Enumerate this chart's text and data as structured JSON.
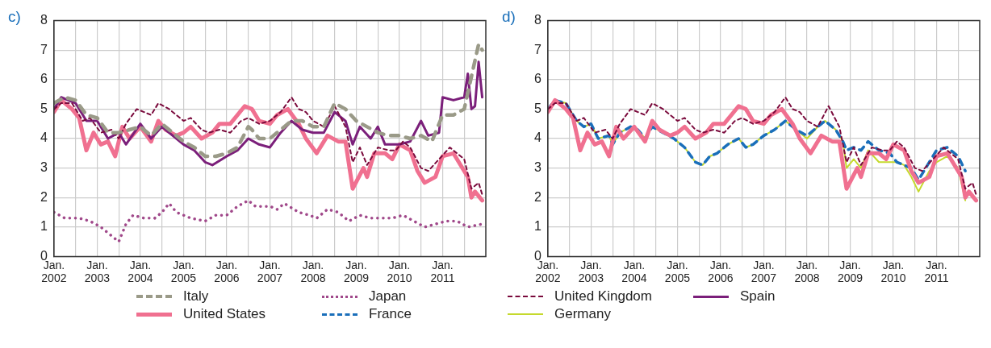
{
  "chart_data": [
    {
      "type": "line",
      "title": "c)",
      "legend": "bottom",
      "grid": true,
      "xlim": [
        "2002-01",
        "2012-01"
      ],
      "ylim": [
        0,
        8
      ],
      "yticks": [
        0,
        1,
        2,
        3,
        4,
        5,
        6,
        7,
        8
      ],
      "xticks": [
        {
          "value": "2002-01",
          "label": "Jan. 2002"
        },
        {
          "value": "2002-07",
          "label": null
        },
        {
          "value": "2003-01",
          "label": "Jan. 2003"
        },
        {
          "value": "2003-07",
          "label": null
        },
        {
          "value": "2004-01",
          "label": "Jan. 2004"
        },
        {
          "value": "2004-07",
          "label": null
        },
        {
          "value": "2005-01",
          "label": "Jan. 2005"
        },
        {
          "value": "2005-07",
          "label": null
        },
        {
          "value": "2006-01",
          "label": "Jan. 2006"
        },
        {
          "value": "2006-07",
          "label": null
        },
        {
          "value": "2007-01",
          "label": "Jan. 2007"
        },
        {
          "value": "2007-07",
          "label": null
        },
        {
          "value": "2008-01",
          "label": "Jan. 2008"
        },
        {
          "value": "2008-07",
          "label": null
        },
        {
          "value": "2009-01",
          "label": "Jan. 2009"
        },
        {
          "value": "2009-07",
          "label": null
        },
        {
          "value": "2010-01",
          "label": "Jan. 2010"
        },
        {
          "value": "2010-07",
          "label": null
        },
        {
          "value": "2011-01",
          "label": "Jan. 2011"
        },
        {
          "value": "2011-07",
          "label": null
        }
      ],
      "series": [
        {
          "name": "Italy",
          "color": "#9a9a88",
          "line_style": "dashed",
          "x": [
            "2002-01",
            "2002-04",
            "2002-07",
            "2002-10",
            "2003-01",
            "2003-04",
            "2003-07",
            "2003-10",
            "2004-01",
            "2004-04",
            "2004-07",
            "2004-10",
            "2005-01",
            "2005-04",
            "2005-07",
            "2005-10",
            "2006-01",
            "2006-04",
            "2006-07",
            "2006-08",
            "2006-10",
            "2007-01",
            "2007-04",
            "2007-07",
            "2007-10",
            "2008-01",
            "2008-04",
            "2008-07",
            "2008-10",
            "2009-01",
            "2009-04",
            "2009-07",
            "2009-10",
            "2010-01",
            "2010-04",
            "2010-07",
            "2010-10",
            "2011-01",
            "2011-04",
            "2011-07",
            "2011-09",
            "2011-11",
            "2011-12"
          ],
          "values": [
            5.2,
            5.4,
            5.3,
            4.8,
            4.7,
            4.2,
            4.2,
            4.3,
            4.4,
            4.1,
            4.5,
            4.2,
            3.9,
            3.7,
            3.4,
            3.4,
            3.5,
            3.7,
            4.4,
            4.3,
            4.0,
            4.0,
            4.3,
            4.6,
            4.6,
            4.4,
            4.4,
            5.2,
            5.0,
            4.6,
            4.4,
            4.2,
            4.1,
            4.1,
            4.0,
            4.1,
            3.9,
            4.8,
            4.8,
            5.0,
            6.1,
            7.2,
            7.0
          ]
        },
        {
          "name": "Japan",
          "color": "#a0488a",
          "line_style": "dotted",
          "x": [
            "2002-01",
            "2002-04",
            "2002-08",
            "2002-11",
            "2003-02",
            "2003-05",
            "2003-07",
            "2003-09",
            "2003-11",
            "2004-02",
            "2004-05",
            "2004-07",
            "2004-09",
            "2004-11",
            "2005-03",
            "2005-07",
            "2005-10",
            "2006-01",
            "2006-04",
            "2006-07",
            "2006-09",
            "2007-01",
            "2007-03",
            "2007-05",
            "2007-09",
            "2007-12",
            "2008-02",
            "2008-05",
            "2008-08",
            "2008-11",
            "2009-02",
            "2009-05",
            "2009-08",
            "2009-11",
            "2010-02",
            "2010-05",
            "2010-08",
            "2010-11",
            "2011-02",
            "2011-05",
            "2011-08",
            "2011-12"
          ],
          "values": [
            1.5,
            1.3,
            1.3,
            1.2,
            1.0,
            0.7,
            0.5,
            1.1,
            1.4,
            1.3,
            1.3,
            1.5,
            1.8,
            1.5,
            1.3,
            1.2,
            1.4,
            1.4,
            1.7,
            1.9,
            1.7,
            1.7,
            1.6,
            1.8,
            1.5,
            1.4,
            1.3,
            1.6,
            1.5,
            1.2,
            1.4,
            1.3,
            1.3,
            1.3,
            1.4,
            1.2,
            1.0,
            1.1,
            1.2,
            1.2,
            1.0,
            1.1
          ]
        },
        {
          "name": "United Kingdom",
          "color": "#7a0a3c",
          "line_style": "dashed",
          "x": [
            "2002-01",
            "2002-03",
            "2002-06",
            "2002-09",
            "2002-11",
            "2003-02",
            "2003-05",
            "2003-07",
            "2003-09",
            "2003-12",
            "2004-02",
            "2004-04",
            "2004-06",
            "2004-09",
            "2005-01",
            "2005-03",
            "2005-06",
            "2005-08",
            "2005-11",
            "2006-02",
            "2006-05",
            "2006-07",
            "2006-10",
            "2007-01",
            "2007-04",
            "2007-07",
            "2007-09",
            "2007-11",
            "2008-01",
            "2008-04",
            "2008-07",
            "2008-10",
            "2008-12",
            "2009-02",
            "2009-04",
            "2009-07",
            "2009-10",
            "2009-12",
            "2010-02",
            "2010-04",
            "2010-07",
            "2010-09",
            "2010-12",
            "2011-03",
            "2011-05",
            "2011-07",
            "2011-09",
            "2011-11",
            "2011-12"
          ],
          "values": [
            5.0,
            5.2,
            5.2,
            4.6,
            4.7,
            4.2,
            4.3,
            4.0,
            4.5,
            5.0,
            4.9,
            4.8,
            5.2,
            5.0,
            4.6,
            4.7,
            4.3,
            4.2,
            4.3,
            4.2,
            4.6,
            4.7,
            4.5,
            4.6,
            4.9,
            5.4,
            5.0,
            4.9,
            4.6,
            4.4,
            5.1,
            4.4,
            3.2,
            3.7,
            3.1,
            3.7,
            3.6,
            3.6,
            3.9,
            3.7,
            3.0,
            2.9,
            3.3,
            3.7,
            3.5,
            3.3,
            2.3,
            2.5,
            2.1
          ]
        },
        {
          "name": "Spain",
          "color": "#7b1f7a",
          "line_style": "solid",
          "x": [
            "2002-01",
            "2002-03",
            "2002-07",
            "2002-10",
            "2003-01",
            "2003-04",
            "2003-07",
            "2003-09",
            "2004-01",
            "2004-04",
            "2004-07",
            "2004-10",
            "2005-01",
            "2005-04",
            "2005-07",
            "2005-09",
            "2006-01",
            "2006-04",
            "2006-07",
            "2006-10",
            "2007-01",
            "2007-04",
            "2007-07",
            "2007-10",
            "2008-01",
            "2008-04",
            "2008-07",
            "2008-10",
            "2008-12",
            "2009-02",
            "2009-05",
            "2009-07",
            "2009-09",
            "2010-01",
            "2010-04",
            "2010-07",
            "2010-09",
            "2010-12",
            "2011-01",
            "2011-04",
            "2011-07",
            "2011-08",
            "2011-09",
            "2011-10",
            "2011-11",
            "2011-12"
          ],
          "values": [
            5.0,
            5.4,
            5.2,
            4.6,
            4.6,
            4.0,
            4.2,
            3.8,
            4.5,
            4.0,
            4.4,
            4.1,
            3.8,
            3.6,
            3.2,
            3.1,
            3.4,
            3.6,
            4.0,
            3.8,
            3.7,
            4.2,
            4.6,
            4.3,
            4.2,
            4.2,
            4.9,
            4.6,
            3.8,
            4.4,
            4.0,
            4.4,
            3.8,
            3.8,
            3.9,
            4.6,
            4.1,
            4.2,
            5.4,
            5.3,
            5.4,
            6.2,
            5.0,
            5.1,
            6.6,
            5.4
          ]
        },
        {
          "name": "United States",
          "color": "#f07090",
          "line_style": "solid",
          "x": [
            "2002-01",
            "2002-03",
            "2002-06",
            "2002-08",
            "2002-10",
            "2002-12",
            "2003-02",
            "2003-04",
            "2003-06",
            "2003-08",
            "2003-10",
            "2004-01",
            "2004-04",
            "2004-06",
            "2004-08",
            "2004-11",
            "2005-01",
            "2005-03",
            "2005-06",
            "2005-09",
            "2005-11",
            "2006-02",
            "2006-06",
            "2006-08",
            "2006-10",
            "2007-01",
            "2007-03",
            "2007-06",
            "2007-09",
            "2007-11",
            "2008-02",
            "2008-05",
            "2008-08",
            "2008-10",
            "2008-12",
            "2009-03",
            "2009-04",
            "2009-06",
            "2009-09",
            "2009-11",
            "2010-01",
            "2010-04",
            "2010-06",
            "2010-08",
            "2010-11",
            "2011-01",
            "2011-04",
            "2011-06",
            "2011-08",
            "2011-09",
            "2011-10",
            "2011-12"
          ],
          "values": [
            4.9,
            5.3,
            5.0,
            4.7,
            3.6,
            4.2,
            3.8,
            3.9,
            3.4,
            4.4,
            4.0,
            4.4,
            3.9,
            4.6,
            4.3,
            4.1,
            4.2,
            4.4,
            4.0,
            4.2,
            4.5,
            4.5,
            5.1,
            5.0,
            4.6,
            4.5,
            4.8,
            5.0,
            4.5,
            4.0,
            3.5,
            4.1,
            3.9,
            3.9,
            2.3,
            3.0,
            2.7,
            3.5,
            3.5,
            3.3,
            3.8,
            3.6,
            2.9,
            2.5,
            2.7,
            3.4,
            3.5,
            3.1,
            2.7,
            2.0,
            2.2,
            1.9
          ]
        }
      ]
    },
    {
      "type": "line",
      "title": "d)",
      "legend": "bottom",
      "grid": true,
      "xlim": [
        "2002-01",
        "2012-01"
      ],
      "ylim": [
        0,
        8
      ],
      "yticks": [
        0,
        1,
        2,
        3,
        4,
        5,
        6,
        7,
        8
      ],
      "xticks": [
        {
          "value": "2002-01",
          "label": "Jan. 2002"
        },
        {
          "value": "2002-07",
          "label": null
        },
        {
          "value": "2003-01",
          "label": "Jan. 2003"
        },
        {
          "value": "2003-07",
          "label": null
        },
        {
          "value": "2004-01",
          "label": "Jan. 2004"
        },
        {
          "value": "2004-07",
          "label": null
        },
        {
          "value": "2005-01",
          "label": "Jan. 2005"
        },
        {
          "value": "2005-07",
          "label": null
        },
        {
          "value": "2006-01",
          "label": "Jan. 2006"
        },
        {
          "value": "2006-07",
          "label": null
        },
        {
          "value": "2007-01",
          "label": "Jan. 2007"
        },
        {
          "value": "2007-07",
          "label": null
        },
        {
          "value": "2008-01",
          "label": "Jan. 2008"
        },
        {
          "value": "2008-07",
          "label": null
        },
        {
          "value": "2009-01",
          "label": "Jan. 2009"
        },
        {
          "value": "2009-07",
          "label": null
        },
        {
          "value": "2010-01",
          "label": "Jan. 2010"
        },
        {
          "value": "2010-07",
          "label": null
        },
        {
          "value": "2011-01",
          "label": "Jan. 2011"
        },
        {
          "value": "2011-07",
          "label": null
        }
      ],
      "series": [
        {
          "name": "United Kingdom",
          "color": "#7a0a3c",
          "line_style": "dashed",
          "x": [
            "2002-01",
            "2002-03",
            "2002-06",
            "2002-09",
            "2002-11",
            "2003-02",
            "2003-05",
            "2003-07",
            "2003-09",
            "2003-12",
            "2004-02",
            "2004-04",
            "2004-06",
            "2004-09",
            "2005-01",
            "2005-03",
            "2005-06",
            "2005-08",
            "2005-11",
            "2006-02",
            "2006-05",
            "2006-07",
            "2006-10",
            "2007-01",
            "2007-04",
            "2007-07",
            "2007-09",
            "2007-11",
            "2008-01",
            "2008-04",
            "2008-07",
            "2008-10",
            "2008-12",
            "2009-02",
            "2009-04",
            "2009-07",
            "2009-10",
            "2009-12",
            "2010-02",
            "2010-04",
            "2010-07",
            "2010-09",
            "2010-12",
            "2011-03",
            "2011-05",
            "2011-07",
            "2011-09",
            "2011-11",
            "2011-12"
          ],
          "values": [
            5.0,
            5.2,
            5.2,
            4.6,
            4.7,
            4.2,
            4.3,
            4.0,
            4.5,
            5.0,
            4.9,
            4.8,
            5.2,
            5.0,
            4.6,
            4.7,
            4.3,
            4.2,
            4.3,
            4.2,
            4.6,
            4.7,
            4.5,
            4.6,
            4.9,
            5.4,
            5.0,
            4.9,
            4.6,
            4.4,
            5.1,
            4.4,
            3.2,
            3.7,
            3.1,
            3.7,
            3.6,
            3.6,
            3.9,
            3.7,
            3.0,
            2.9,
            3.3,
            3.7,
            3.5,
            3.3,
            2.3,
            2.5,
            2.1
          ]
        },
        {
          "name": "United States",
          "color": "#f07090",
          "line_style": "solid",
          "x": [
            "2002-01",
            "2002-03",
            "2002-06",
            "2002-08",
            "2002-10",
            "2002-12",
            "2003-02",
            "2003-04",
            "2003-06",
            "2003-08",
            "2003-10",
            "2004-01",
            "2004-04",
            "2004-06",
            "2004-08",
            "2004-11",
            "2005-01",
            "2005-03",
            "2005-06",
            "2005-09",
            "2005-11",
            "2006-02",
            "2006-06",
            "2006-08",
            "2006-10",
            "2007-01",
            "2007-03",
            "2007-06",
            "2007-09",
            "2007-11",
            "2008-02",
            "2008-05",
            "2008-08",
            "2008-10",
            "2008-12",
            "2009-03",
            "2009-04",
            "2009-06",
            "2009-09",
            "2009-11",
            "2010-01",
            "2010-04",
            "2010-06",
            "2010-08",
            "2010-11",
            "2011-01",
            "2011-04",
            "2011-06",
            "2011-08",
            "2011-09",
            "2011-10",
            "2011-12"
          ],
          "values": [
            4.9,
            5.3,
            5.0,
            4.7,
            3.6,
            4.2,
            3.8,
            3.9,
            3.4,
            4.4,
            4.0,
            4.4,
            3.9,
            4.6,
            4.3,
            4.1,
            4.2,
            4.4,
            4.0,
            4.2,
            4.5,
            4.5,
            5.1,
            5.0,
            4.6,
            4.5,
            4.8,
            5.0,
            4.5,
            4.0,
            3.5,
            4.1,
            3.9,
            3.9,
            2.3,
            3.0,
            2.7,
            3.5,
            3.5,
            3.3,
            3.8,
            3.6,
            2.9,
            2.5,
            2.7,
            3.4,
            3.5,
            3.1,
            2.7,
            2.0,
            2.2,
            1.9
          ]
        },
        {
          "name": "France",
          "color": "#1a6fba",
          "line_style": "dashed",
          "x": [
            "2002-01",
            "2002-03",
            "2002-06",
            "2002-09",
            "2002-11",
            "2003-01",
            "2003-03",
            "2003-06",
            "2003-07",
            "2003-09",
            "2003-12",
            "2004-02",
            "2004-04",
            "2004-06",
            "2004-09",
            "2004-12",
            "2005-03",
            "2005-06",
            "2005-08",
            "2005-10",
            "2005-12",
            "2006-03",
            "2006-06",
            "2006-08",
            "2006-10",
            "2007-01",
            "2007-04",
            "2007-07",
            "2007-10",
            "2008-01",
            "2008-04",
            "2008-06",
            "2008-09",
            "2008-11",
            "2008-12",
            "2009-02",
            "2009-04",
            "2009-06",
            "2009-09",
            "2009-12",
            "2010-02",
            "2010-04",
            "2010-06",
            "2010-08",
            "2010-11",
            "2011-01",
            "2011-04",
            "2011-07",
            "2011-09"
          ],
          "values": [
            5.0,
            5.3,
            5.2,
            4.6,
            4.4,
            4.5,
            4.0,
            4.1,
            3.8,
            4.2,
            4.4,
            4.3,
            4.0,
            4.4,
            4.2,
            4.0,
            3.7,
            3.2,
            3.1,
            3.4,
            3.5,
            3.8,
            4.0,
            3.7,
            3.8,
            4.1,
            4.3,
            4.6,
            4.3,
            4.1,
            4.4,
            4.6,
            4.3,
            3.9,
            3.6,
            3.7,
            3.6,
            3.9,
            3.6,
            3.5,
            3.2,
            3.1,
            3.0,
            2.6,
            3.2,
            3.6,
            3.7,
            3.4,
            2.9
          ]
        },
        {
          "name": "Germany",
          "color": "#c5d92d",
          "line_style": "solid",
          "x": [
            "2002-01",
            "2002-03",
            "2002-06",
            "2002-09",
            "2002-11",
            "2003-01",
            "2003-03",
            "2003-06",
            "2003-07",
            "2003-09",
            "2003-12",
            "2004-02",
            "2004-04",
            "2004-06",
            "2004-09",
            "2004-12",
            "2005-03",
            "2005-06",
            "2005-08",
            "2005-10",
            "2005-12",
            "2006-03",
            "2006-06",
            "2006-08",
            "2006-10",
            "2007-01",
            "2007-04",
            "2007-07",
            "2007-10",
            "2008-01",
            "2008-04",
            "2008-06",
            "2008-09",
            "2008-11",
            "2008-12",
            "2009-02",
            "2009-04",
            "2009-06",
            "2009-09",
            "2009-12",
            "2010-02",
            "2010-04",
            "2010-06",
            "2010-08",
            "2010-11",
            "2011-01",
            "2011-04",
            "2011-07",
            "2011-09"
          ],
          "values": [
            5.0,
            5.3,
            5.2,
            4.6,
            4.4,
            4.5,
            4.0,
            4.1,
            3.8,
            4.2,
            4.4,
            4.3,
            4.0,
            4.4,
            4.2,
            4.0,
            3.7,
            3.2,
            3.1,
            3.4,
            3.5,
            3.8,
            4.0,
            3.7,
            3.8,
            4.1,
            4.3,
            4.6,
            4.3,
            4.0,
            4.4,
            4.6,
            4.3,
            3.9,
            3.0,
            3.3,
            3.0,
            3.6,
            3.2,
            3.2,
            3.2,
            3.1,
            2.7,
            2.2,
            2.9,
            3.2,
            3.4,
            3.0,
            1.9
          ]
        }
      ]
    }
  ]
}
